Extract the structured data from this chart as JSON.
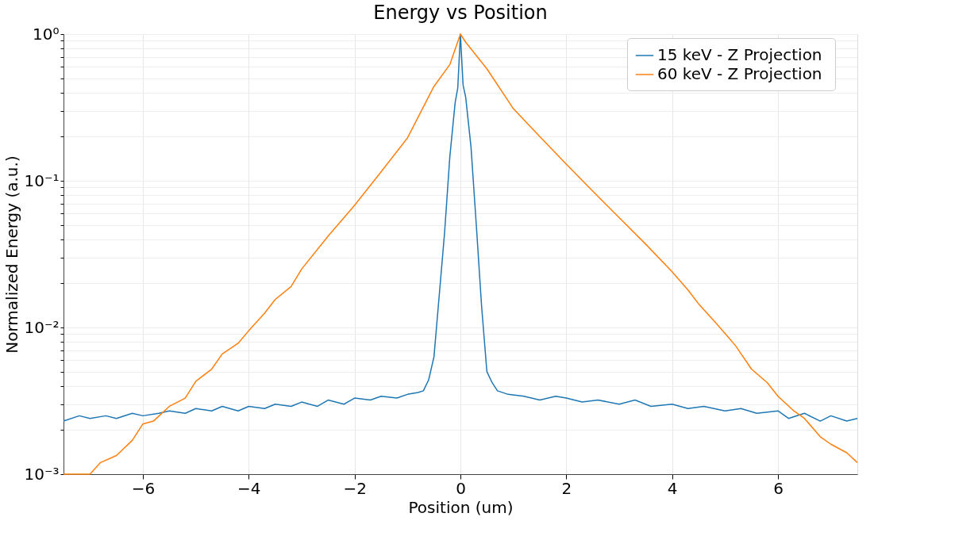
{
  "chart_data": {
    "type": "line",
    "title": "Energy vs Position",
    "xlabel": "Position (um)",
    "ylabel": "Normalized Energy (a.u.)",
    "xlim": [
      -7.5,
      7.5
    ],
    "ylim": [
      0.001,
      1
    ],
    "log": "y",
    "grid": true,
    "legend": "top right",
    "line_style": "solid",
    "marker": "none",
    "xticks": [
      {
        "value": -6,
        "label": "−6"
      },
      {
        "value": -4,
        "label": "−4"
      },
      {
        "value": -2,
        "label": "−2"
      },
      0,
      2,
      4,
      6
    ],
    "yticks": [
      {
        "value": 0.001,
        "label": "10⁻³"
      },
      {
        "value": 0.002,
        "label": null
      },
      {
        "value": 0.003,
        "label": null
      },
      {
        "value": 0.004,
        "label": null
      },
      {
        "value": 0.005,
        "label": null
      },
      {
        "value": 0.006,
        "label": null
      },
      {
        "value": 0.007,
        "label": null
      },
      {
        "value": 0.008,
        "label": null
      },
      {
        "value": 0.009,
        "label": null
      },
      {
        "value": 0.01,
        "label": "10⁻²"
      },
      {
        "value": 0.02,
        "label": null
      },
      {
        "value": 0.03,
        "label": null
      },
      {
        "value": 0.04,
        "label": null
      },
      {
        "value": 0.05,
        "label": null
      },
      {
        "value": 0.06,
        "label": null
      },
      {
        "value": 0.07,
        "label": null
      },
      {
        "value": 0.08,
        "label": null
      },
      {
        "value": 0.09,
        "label": null
      },
      {
        "value": 0.1,
        "label": "10⁻¹"
      },
      {
        "value": 0.2,
        "label": null
      },
      {
        "value": 0.3,
        "label": null
      },
      {
        "value": 0.4,
        "label": null
      },
      {
        "value": 0.5,
        "label": null
      },
      {
        "value": 0.6,
        "label": null
      },
      {
        "value": 0.7,
        "label": null
      },
      {
        "value": 0.8,
        "label": null
      },
      {
        "value": 0.9,
        "label": null
      },
      {
        "value": 1,
        "label": "10⁰"
      }
    ],
    "series": [
      {
        "name": "15 keV  - Z Projection",
        "color": "#1f77b4",
        "x": [
          -7.5,
          -7.2,
          -7.0,
          -6.7,
          -6.5,
          -6.2,
          -6.0,
          -5.7,
          -5.5,
          -5.2,
          -5.0,
          -4.7,
          -4.5,
          -4.2,
          -4.0,
          -3.7,
          -3.5,
          -3.2,
          -3.0,
          -2.7,
          -2.5,
          -2.2,
          -2.0,
          -1.7,
          -1.5,
          -1.2,
          -1.0,
          -0.8,
          -0.7,
          -0.6,
          -0.5,
          -0.4,
          -0.3,
          -0.2,
          -0.1,
          -0.05,
          0,
          0.05,
          0.1,
          0.2,
          0.3,
          0.4,
          0.5,
          0.6,
          0.7,
          0.9,
          1.2,
          1.5,
          1.8,
          2.0,
          2.3,
          2.6,
          3.0,
          3.3,
          3.6,
          4.0,
          4.3,
          4.6,
          5.0,
          5.3,
          5.6,
          6.0,
          6.2,
          6.5,
          6.8,
          7.0,
          7.3,
          7.5
        ],
        "values": [
          0.0023,
          0.0025,
          0.0024,
          0.0025,
          0.0024,
          0.0026,
          0.0025,
          0.0026,
          0.0027,
          0.0026,
          0.0028,
          0.0027,
          0.0029,
          0.0027,
          0.0029,
          0.0028,
          0.003,
          0.0029,
          0.0031,
          0.0029,
          0.0032,
          0.003,
          0.0033,
          0.0032,
          0.0034,
          0.0033,
          0.0035,
          0.0036,
          0.0037,
          0.0044,
          0.0063,
          0.0166,
          0.044,
          0.146,
          0.34,
          0.43,
          1.0,
          0.45,
          0.37,
          0.17,
          0.05,
          0.014,
          0.005,
          0.0042,
          0.0037,
          0.0035,
          0.0034,
          0.0032,
          0.0034,
          0.0033,
          0.0031,
          0.0032,
          0.003,
          0.0032,
          0.0029,
          0.003,
          0.0028,
          0.0029,
          0.0027,
          0.0028,
          0.0026,
          0.0027,
          0.0024,
          0.0026,
          0.0023,
          0.0025,
          0.0023,
          0.0024
        ]
      },
      {
        "name": "60 keV  - Z Projection",
        "color": "#ff7f0e",
        "x": [
          -7.5,
          -7.0,
          -6.8,
          -6.5,
          -6.2,
          -6.0,
          -5.8,
          -5.5,
          -5.2,
          -5.0,
          -4.7,
          -4.5,
          -4.2,
          -4.0,
          -3.7,
          -3.5,
          -3.2,
          -3.0,
          -2.5,
          -2.0,
          -1.5,
          -1.0,
          -0.5,
          -0.2,
          0,
          0.1,
          0.5,
          1.0,
          1.5,
          2.0,
          2.5,
          3.0,
          3.5,
          4.0,
          4.3,
          4.5,
          4.8,
          5.0,
          5.2,
          5.5,
          5.8,
          6.0,
          6.3,
          6.5,
          6.8,
          7.0,
          7.3,
          7.5
        ],
        "values": [
          0.001,
          0.001,
          0.0012,
          0.00134,
          0.0017,
          0.0022,
          0.0023,
          0.0029,
          0.0033,
          0.0043,
          0.0052,
          0.0066,
          0.0078,
          0.0095,
          0.0125,
          0.0155,
          0.019,
          0.025,
          0.042,
          0.068,
          0.115,
          0.196,
          0.44,
          0.62,
          1.0,
          0.88,
          0.58,
          0.31,
          0.2,
          0.13,
          0.085,
          0.056,
          0.037,
          0.024,
          0.018,
          0.0145,
          0.011,
          0.0091,
          0.0075,
          0.0052,
          0.0042,
          0.0034,
          0.0027,
          0.0024,
          0.0018,
          0.0016,
          0.0014,
          0.0012
        ]
      }
    ]
  }
}
